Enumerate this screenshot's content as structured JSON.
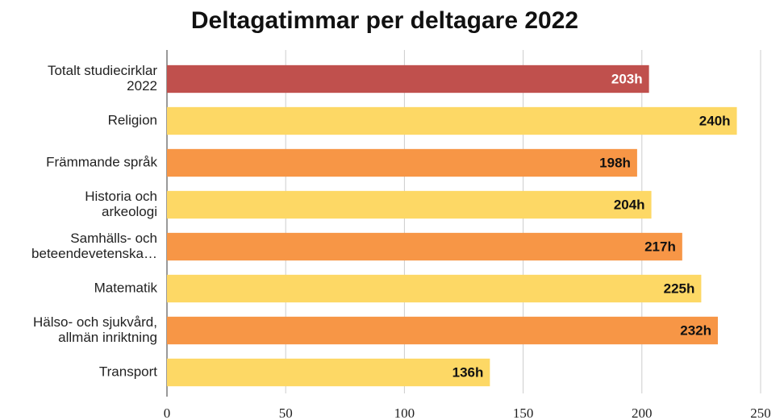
{
  "chart_data": {
    "type": "bar",
    "orientation": "horizontal",
    "title": "Deltagatimmar per deltagare 2022",
    "categories": [
      [
        "Totalt studiecirklar",
        "2022"
      ],
      [
        "Religion"
      ],
      [
        "Främmande språk"
      ],
      [
        "Historia och",
        "arkeologi"
      ],
      [
        "Samhälls- och",
        "beteendevetenska…"
      ],
      [
        "Matematik"
      ],
      [
        "Hälso- och sjukvård,",
        "allmän inriktning"
      ],
      [
        "Transport"
      ]
    ],
    "values": [
      203,
      240,
      198,
      204,
      217,
      225,
      232,
      136
    ],
    "value_labels": [
      "203h",
      "240h",
      "198h",
      "204h",
      "217h",
      "225h",
      "232h",
      "136h"
    ],
    "colors": [
      "#c0504d",
      "#fdd865",
      "#f79646",
      "#fdd865",
      "#f79646",
      "#fdd865",
      "#f79646",
      "#fdd865"
    ],
    "label_colors": [
      "#ffffff",
      "#111111",
      "#111111",
      "#111111",
      "#111111",
      "#111111",
      "#111111",
      "#111111"
    ],
    "xlim": [
      0,
      250
    ],
    "xticks": [
      0,
      50,
      100,
      150,
      200,
      250
    ],
    "grid": true
  }
}
